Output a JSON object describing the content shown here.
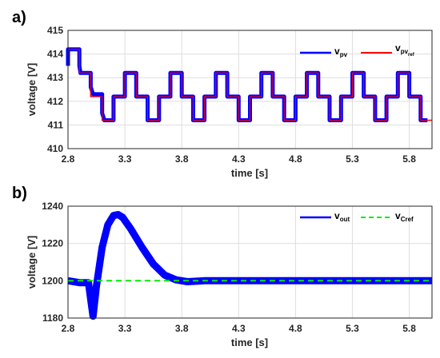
{
  "panels": [
    {
      "label": "a)",
      "xlabel": "time [s]",
      "ylabel": "voltage [V]",
      "legend_placement": "top-right"
    },
    {
      "label": "b)",
      "xlabel": "time [s]",
      "ylabel": "voltage [V]",
      "legend_placement": "top-right"
    }
  ],
  "chart_data": [
    {
      "type": "line",
      "xlim": [
        2.8,
        6.0
      ],
      "ylim": [
        410,
        415
      ],
      "xticks": [
        "2.8",
        "3.3",
        "3.8",
        "4.3",
        "4.8",
        "5.3",
        "5.8"
      ],
      "yticks": [
        "410",
        "411",
        "412",
        "413",
        "414",
        "415"
      ],
      "grid": true,
      "colors": {
        "v_pv": "#0000ff",
        "v_pv_ref": "#ff0000"
      },
      "legend": [
        {
          "main": "v",
          "sub": "pv",
          "subsub": ""
        },
        {
          "main": "v",
          "sub": "pv",
          "subsub": "ref"
        }
      ],
      "series": [
        {
          "key": "v_pv_ref",
          "x": [
            2.8,
            2.9,
            2.9,
            3.0,
            3.0,
            3.1,
            3.1,
            3.2,
            3.2,
            3.3,
            3.3,
            3.4,
            3.4,
            3.5,
            3.5,
            3.6,
            3.6,
            3.7,
            3.7,
            3.8,
            3.8,
            3.9,
            3.9,
            4.0,
            4.0,
            4.1,
            4.1,
            4.2,
            4.2,
            4.3,
            4.3,
            4.4,
            4.4,
            4.5,
            4.5,
            4.6,
            4.6,
            4.7,
            4.7,
            4.8,
            4.8,
            4.9,
            4.9,
            5.0,
            5.0,
            5.1,
            5.1,
            5.2,
            5.2,
            5.3,
            5.3,
            5.4,
            5.4,
            5.5,
            5.5,
            5.6,
            5.6,
            5.7,
            5.7,
            5.8,
            5.8,
            5.9,
            5.9,
            6.0
          ],
          "y": [
            414.2,
            414.2,
            413.2,
            413.2,
            412.2,
            412.2,
            411.2,
            411.2,
            412.2,
            412.2,
            413.2,
            413.2,
            412.2,
            412.2,
            411.2,
            411.2,
            412.2,
            412.2,
            413.2,
            413.2,
            412.2,
            412.2,
            411.2,
            411.2,
            412.2,
            412.2,
            413.2,
            413.2,
            412.2,
            412.2,
            411.2,
            411.2,
            412.2,
            412.2,
            413.2,
            413.2,
            412.2,
            412.2,
            411.2,
            411.2,
            412.2,
            412.2,
            413.2,
            413.2,
            412.2,
            412.2,
            411.2,
            411.2,
            412.2,
            412.2,
            413.2,
            413.2,
            412.2,
            412.2,
            411.2,
            411.2,
            412.2,
            412.2,
            413.2,
            413.2,
            412.2,
            412.2,
            411.2,
            411.2
          ]
        },
        {
          "key": "v_pv",
          "x": [
            2.8,
            2.8,
            2.9,
            2.9,
            2.91,
            3.0,
            3.0,
            3.02,
            3.1,
            3.1,
            3.12,
            3.2,
            3.2,
            3.3,
            3.3,
            3.4,
            3.4,
            3.5,
            3.5,
            3.6,
            3.6,
            3.7,
            3.7,
            3.8,
            3.8,
            3.9,
            3.9,
            4.0,
            4.0,
            4.1,
            4.1,
            4.2,
            4.2,
            4.3,
            4.3,
            4.4,
            4.4,
            4.5,
            4.5,
            4.6,
            4.6,
            4.7,
            4.7,
            4.8,
            4.8,
            4.9,
            4.9,
            5.0,
            5.0,
            5.1,
            5.1,
            5.2,
            5.2,
            5.3,
            5.3,
            5.4,
            5.4,
            5.5,
            5.5,
            5.6,
            5.6,
            5.7,
            5.7,
            5.8,
            5.8,
            5.9,
            5.9,
            5.96
          ],
          "y": [
            413.5,
            414.2,
            414.2,
            413.5,
            413.2,
            413.2,
            412.6,
            412.3,
            412.3,
            411.5,
            411.2,
            411.2,
            412.2,
            412.2,
            413.2,
            413.2,
            412.2,
            412.2,
            411.2,
            411.2,
            412.2,
            412.2,
            413.2,
            413.2,
            412.2,
            412.2,
            411.2,
            411.2,
            412.2,
            412.2,
            413.2,
            413.2,
            412.2,
            412.2,
            411.2,
            411.2,
            412.2,
            412.2,
            413.2,
            413.2,
            412.2,
            412.2,
            411.2,
            411.2,
            412.2,
            412.2,
            413.2,
            413.2,
            412.2,
            412.2,
            411.2,
            411.2,
            412.2,
            412.2,
            413.2,
            413.2,
            412.2,
            412.2,
            411.2,
            411.2,
            412.2,
            412.2,
            413.2,
            413.2,
            412.2,
            412.2,
            411.2,
            411.2
          ]
        }
      ]
    },
    {
      "type": "line",
      "xlim": [
        2.8,
        6.0
      ],
      "ylim": [
        1180,
        1240
      ],
      "xticks": [
        "2.8",
        "3.3",
        "3.8",
        "4.3",
        "4.8",
        "5.3",
        "5.8"
      ],
      "yticks": [
        "1180",
        "1200",
        "1220",
        "1240"
      ],
      "grid": true,
      "colors": {
        "v_out": "#0000ff",
        "v_Cref": "#00ee00"
      },
      "legend": [
        {
          "main": "v",
          "sub": "out"
        },
        {
          "main": "v",
          "sub": "Cref"
        }
      ],
      "series": [
        {
          "key": "v_out",
          "x": [
            2.8,
            2.9,
            2.98,
            3.0,
            3.02,
            3.05,
            3.1,
            3.15,
            3.2,
            3.24,
            3.28,
            3.35,
            3.45,
            3.55,
            3.65,
            3.75,
            3.85,
            4.0,
            4.5,
            5.0,
            5.5,
            6.0
          ],
          "y": [
            1200,
            1199,
            1199,
            1190,
            1181,
            1197,
            1218,
            1230,
            1235,
            1235.5,
            1234,
            1228,
            1218,
            1209,
            1203,
            1200.5,
            1199.5,
            1200,
            1200,
            1200,
            1200,
            1200
          ]
        },
        {
          "key": "v_Cref",
          "x": [
            2.8,
            6.0
          ],
          "y": [
            1200,
            1200
          ]
        }
      ]
    }
  ]
}
